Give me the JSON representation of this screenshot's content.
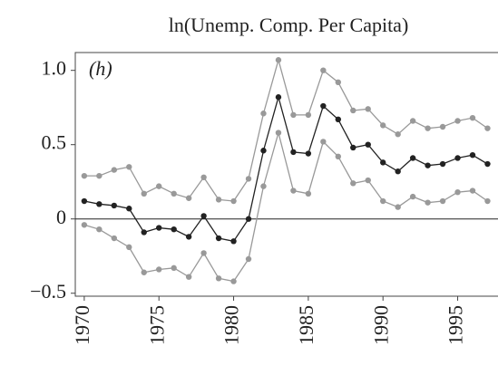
{
  "chart_data": {
    "type": "line",
    "title": "ln(Unemp. Comp. Per Capita)",
    "annotation": "(h)",
    "x": [
      1970,
      1971,
      1972,
      1973,
      1974,
      1975,
      1976,
      1977,
      1978,
      1979,
      1980,
      1981,
      1982,
      1983,
      1984,
      1985,
      1986,
      1987,
      1988,
      1989,
      1990,
      1991,
      1992,
      1993,
      1994,
      1995,
      1996,
      1997
    ],
    "series": [
      {
        "color": "#999999",
        "values": [
          0.29,
          0.29,
          0.33,
          0.35,
          0.17,
          0.22,
          0.17,
          0.14,
          0.28,
          0.13,
          0.12,
          0.27,
          0.71,
          1.07,
          0.7,
          0.7,
          1.0,
          0.92,
          0.73,
          0.74,
          0.63,
          0.57,
          0.66,
          0.61,
          0.62,
          0.66,
          0.68,
          0.61
        ]
      },
      {
        "color": "#222222",
        "values": [
          0.12,
          0.1,
          0.09,
          0.07,
          -0.09,
          -0.06,
          -0.07,
          -0.12,
          0.02,
          -0.13,
          -0.15,
          0.0,
          0.46,
          0.82,
          0.45,
          0.44,
          0.76,
          0.67,
          0.48,
          0.5,
          0.38,
          0.32,
          0.41,
          0.36,
          0.37,
          0.41,
          0.43,
          0.37
        ]
      },
      {
        "color": "#999999",
        "values": [
          -0.04,
          -0.07,
          -0.13,
          -0.19,
          -0.36,
          -0.34,
          -0.33,
          -0.39,
          -0.23,
          -0.4,
          -0.42,
          -0.27,
          0.22,
          0.58,
          0.19,
          0.17,
          0.52,
          0.42,
          0.24,
          0.26,
          0.12,
          0.08,
          0.15,
          0.11,
          0.12,
          0.18,
          0.19,
          0.12
        ]
      }
    ],
    "xlim": [
      1969.4,
      1997.7
    ],
    "xticks": [
      1970,
      1975,
      1980,
      1985,
      1990,
      1995
    ],
    "ylim": [
      -0.52,
      1.12
    ],
    "yticks": [
      {
        "value": 1,
        "label": "1.0"
      },
      0.5,
      0,
      {
        "value": -0.5,
        "label": "−0.5"
      }
    ],
    "zero_line": true
  }
}
